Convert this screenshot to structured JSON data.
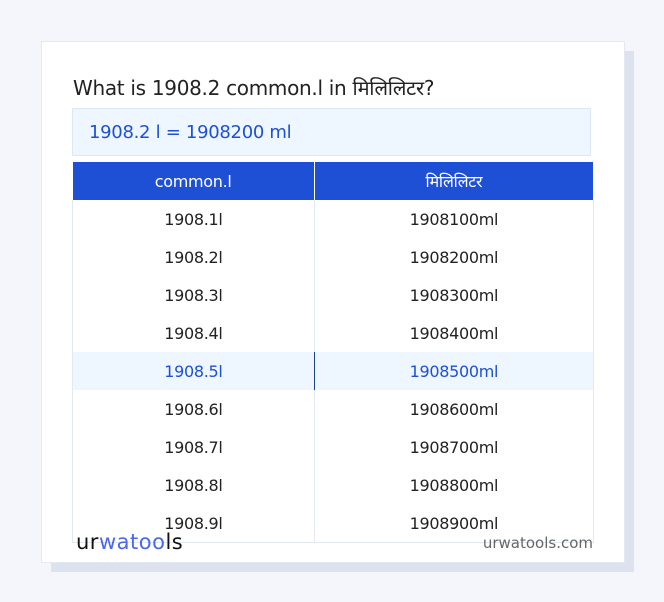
{
  "title": "What is 1908.2 common.l in मिलिलिटर?",
  "result": "1908.2 l = 1908200 ml",
  "table": {
    "headers": [
      "common.l",
      "मिलिलिटर"
    ],
    "rows": [
      [
        "1908.1l",
        "1908100ml"
      ],
      [
        "1908.2l",
        "1908200ml"
      ],
      [
        "1908.3l",
        "1908300ml"
      ],
      [
        "1908.4l",
        "1908400ml"
      ],
      [
        "1908.5l",
        "1908500ml"
      ],
      [
        "1908.6l",
        "1908600ml"
      ],
      [
        "1908.7l",
        "1908700ml"
      ],
      [
        "1908.8l",
        "1908800ml"
      ],
      [
        "1908.9l",
        "1908900ml"
      ]
    ],
    "highlighted_row": 4
  },
  "footer": {
    "logo": "urwatools",
    "logo_parts": [
      "ur",
      "wat",
      "oo",
      "ls"
    ],
    "site": "urwatools.com"
  },
  "colors": {
    "accent": "#1e50d6",
    "highlight_bg": "#eef6ff"
  }
}
